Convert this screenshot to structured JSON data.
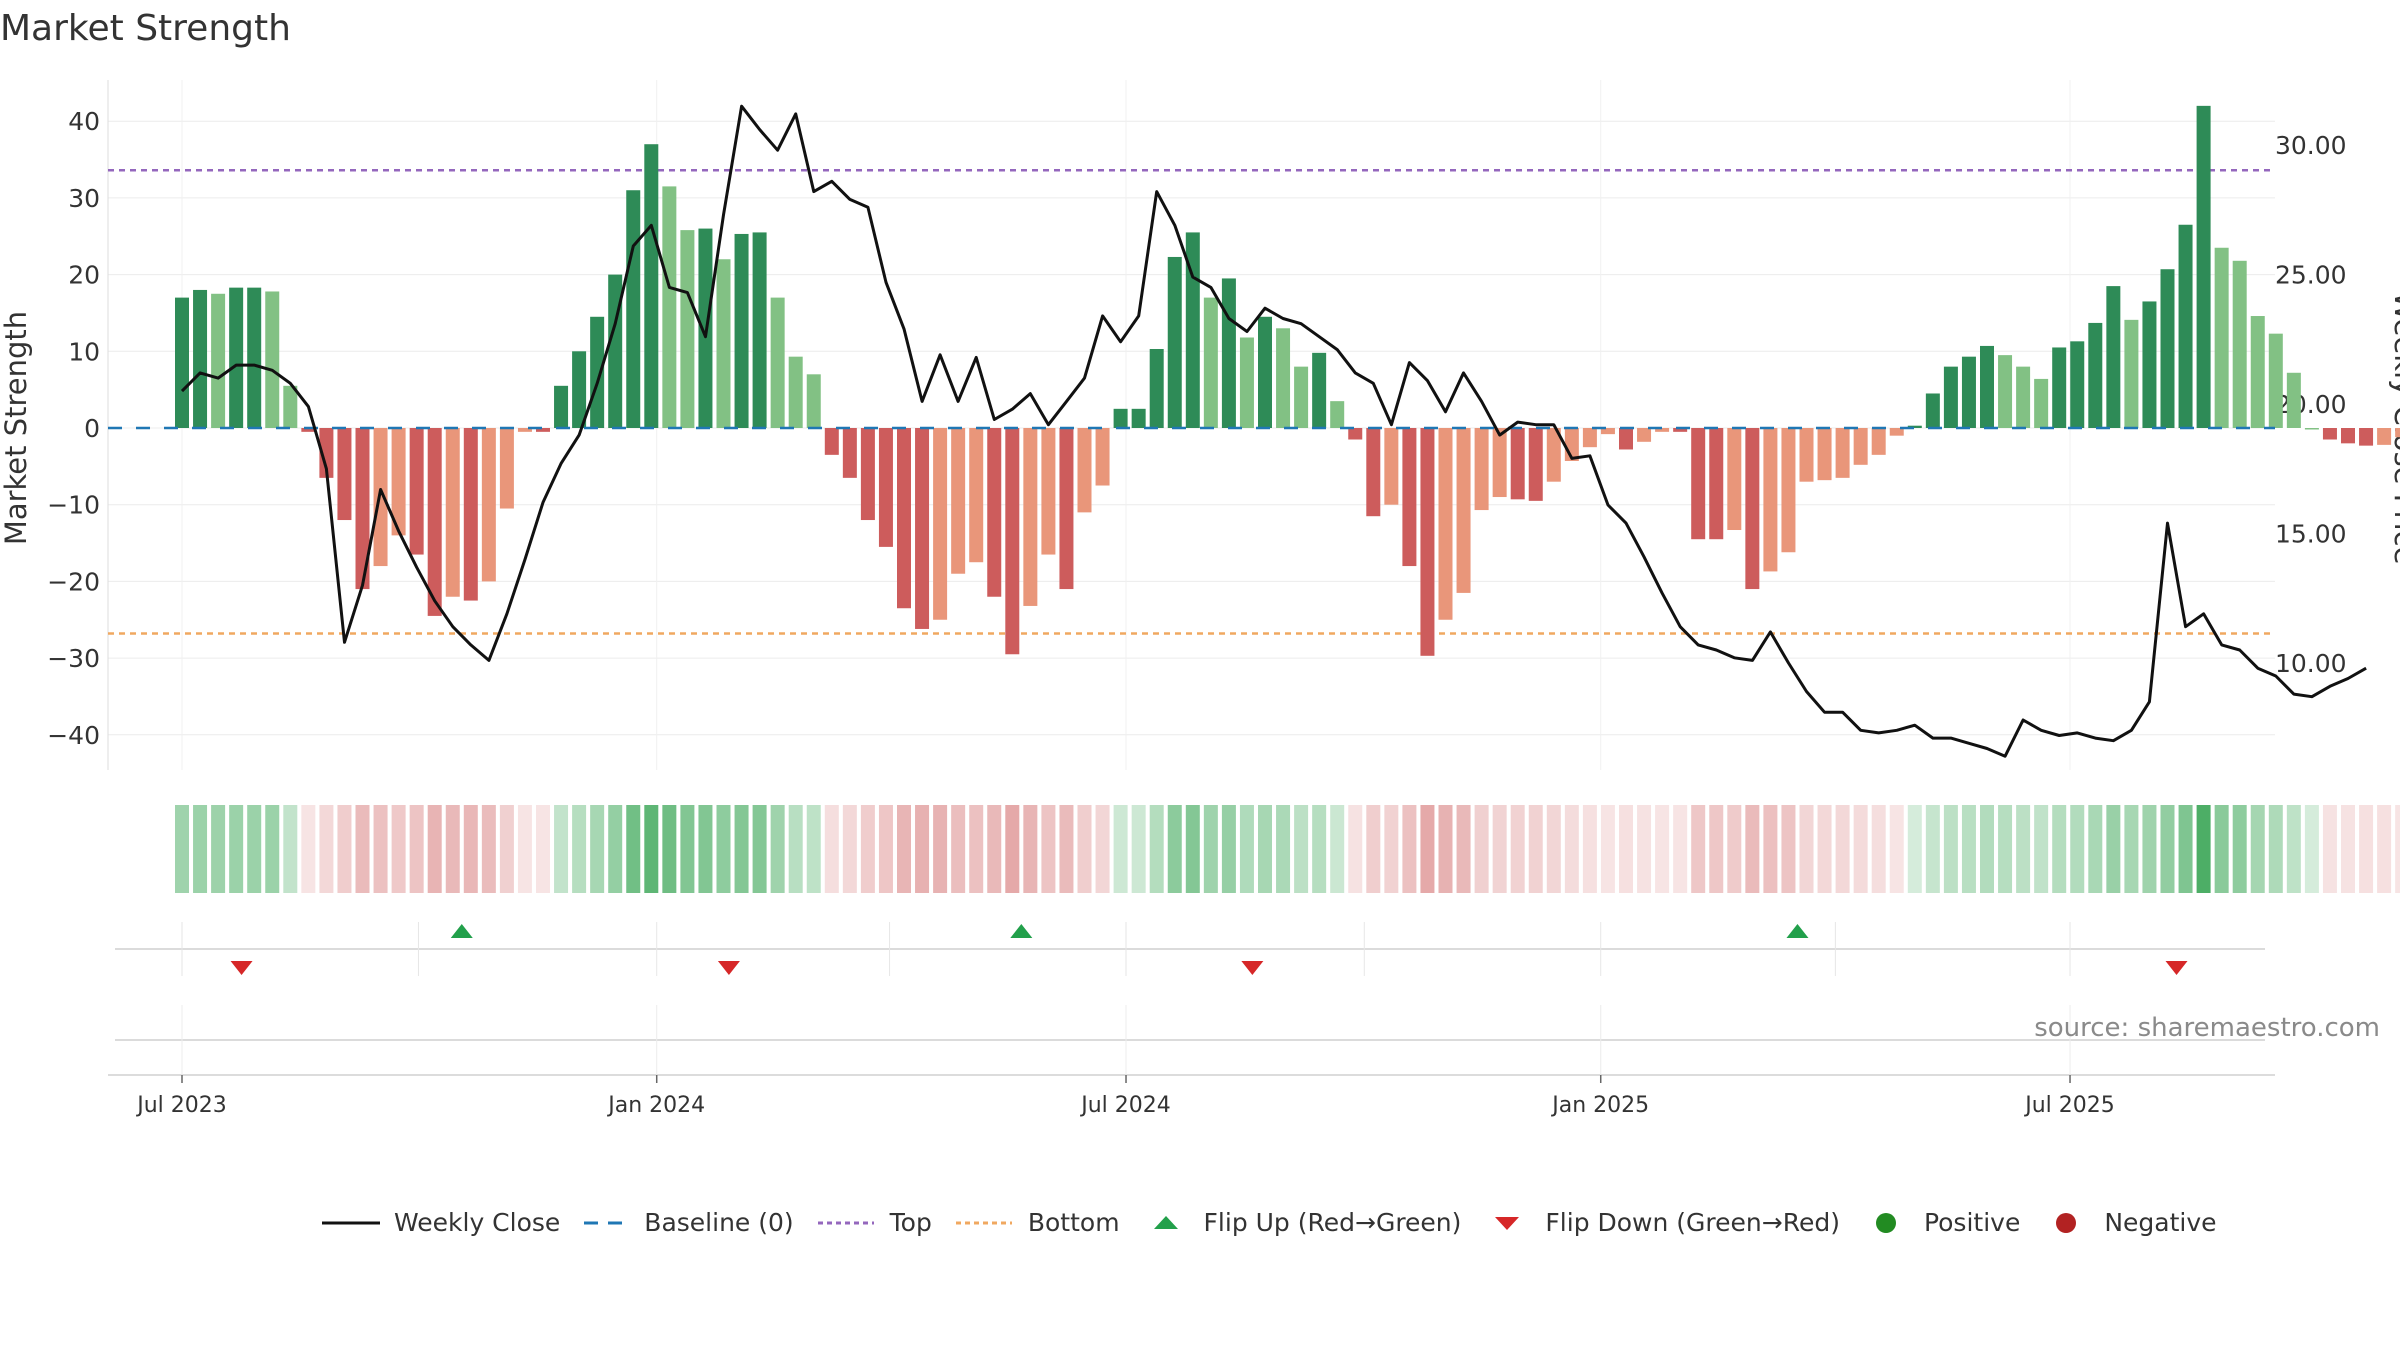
{
  "title": "Market Strength",
  "source": "source: sharemaestro.com",
  "colors": {
    "strong_pos": "#2e8b57",
    "weak_pos": "#82c184",
    "strong_neg": "#cd5c5c",
    "weak_neg": "#e9967a",
    "close_line": "#111111",
    "baseline": "#1f77b4",
    "top": "#9467bd",
    "bottom": "#f0a860",
    "flip_up": "#22a04b",
    "flip_down": "#d62728",
    "positive": "#228b22",
    "negative": "#b22222"
  },
  "legend": [
    {
      "label": "Weekly Close",
      "symbol": "line",
      "color": "#111111"
    },
    {
      "label": "Baseline (0)",
      "symbol": "dash",
      "color": "#1f77b4"
    },
    {
      "label": "Top",
      "symbol": "dot",
      "color": "#9467bd"
    },
    {
      "label": "Bottom",
      "symbol": "dot",
      "color": "#f0a860"
    },
    {
      "label": "Flip Up (Red→Green)",
      "symbol": "tri-up",
      "color": "#22a04b"
    },
    {
      "label": "Flip Down (Green→Red)",
      "symbol": "tri-down",
      "color": "#d62728"
    },
    {
      "label": "Positive",
      "symbol": "circle",
      "color": "#228b22"
    },
    {
      "label": "Negative",
      "symbol": "circle",
      "color": "#b22222"
    }
  ],
  "chart_data": {
    "type": "bar",
    "title": "Market Strength",
    "ylabel": "Market Strength",
    "y2label": "Weekly Close Price",
    "ylim": [
      -45,
      45
    ],
    "y2lim": [
      7.3,
      32.8
    ],
    "yticks": [
      40,
      30,
      20,
      10,
      0,
      -10,
      -20,
      -30,
      -40
    ],
    "y2ticks": [
      "30.00",
      "25.00",
      "20.00",
      "15.00",
      "10.00"
    ],
    "top_level": 33.6,
    "bottom_level": -26.8,
    "baseline": 0,
    "xlim_weeks": [
      -4,
      119
    ],
    "x_ticks": [
      {
        "label": "Jul 2023",
        "week": 0
      },
      {
        "label": "Jan 2024",
        "week": 26.3
      },
      {
        "label": "Jul 2024",
        "week": 52.3
      },
      {
        "label": "Jan 2025",
        "week": 78.6
      },
      {
        "label": "Jul 2025",
        "week": 104.6
      }
    ],
    "series": [
      {
        "name": "Market Strength",
        "values": [
          17,
          18,
          17.5,
          18.3,
          18.3,
          17.8,
          5.5,
          -0.5,
          -6.5,
          -12,
          -21,
          -18,
          -14,
          -16.5,
          -24.5,
          -22,
          -22.5,
          -20,
          -10.5,
          -0.5,
          -0.5,
          5.5,
          10,
          14.5,
          20,
          31,
          37,
          31.5,
          25.8,
          26,
          22,
          25.3,
          25.5,
          17,
          9.3,
          7,
          -3.5,
          -6.5,
          -12,
          -15.5,
          -23.5,
          -26.2,
          -25,
          -19,
          -17.5,
          -22,
          -29.5,
          -23.2,
          -16.5,
          -21,
          -11,
          -7.5,
          2.5,
          2.5,
          10.3,
          22.3,
          25.5,
          17,
          19.5,
          11.8,
          14.5,
          13,
          8,
          9.8,
          3.5,
          -1.5,
          -11.5,
          -10,
          -18,
          -29.7,
          -25,
          -21.5,
          -10.7,
          -9,
          -9.3,
          -9.5,
          -7,
          -4.3,
          -2.5,
          -0.8,
          -2.8,
          -1.8,
          -0.5,
          -0.5,
          -14.5,
          -14.5,
          -13.3,
          -21,
          -18.7,
          -16.2,
          -7,
          -6.8,
          -6.5,
          -4.8,
          -3.5,
          -1,
          0.3,
          4.5,
          8,
          9.3,
          10.7,
          9.5,
          8,
          6.4,
          10.5,
          11.3,
          13.7,
          18.5,
          14.1,
          16.5,
          20.7,
          26.5,
          42,
          23.5,
          21.8,
          14.6,
          12.3,
          7.2,
          0,
          -1.5,
          -2,
          -2.3,
          -2.2,
          -1.2
        ]
      },
      {
        "name": "Weekly Close",
        "values": [
          20.5,
          21.2,
          21,
          21.5,
          21.5,
          21.3,
          20.8,
          19.9,
          17.5,
          10.8,
          13,
          16.7,
          15.1,
          13.7,
          12.4,
          11.4,
          10.7,
          10.1,
          11.9,
          14,
          16.2,
          17.7,
          18.8,
          20.8,
          23.1,
          26.1,
          26.9,
          24.5,
          24.3,
          22.6,
          27.3,
          31.5,
          30.6,
          29.8,
          31.2,
          28.2,
          28.6,
          27.9,
          27.6,
          24.7,
          22.9,
          20.1,
          21.9,
          20.1,
          21.8,
          19.4,
          19.8,
          20.4,
          19.2,
          20.1,
          21,
          23.4,
          22.4,
          23.4,
          28.2,
          26.9,
          24.9,
          24.5,
          23.3,
          22.8,
          23.7,
          23.3,
          23.1,
          22.6,
          22.1,
          21.2,
          20.8,
          19.2,
          21.6,
          20.9,
          19.7,
          21.2,
          20.1,
          18.8,
          19.3,
          19.2,
          19.2,
          17.9,
          18,
          16.1,
          15.4,
          14.1,
          12.7,
          11.4,
          10.7,
          10.5,
          10.2,
          10.1,
          11.2,
          10,
          8.9,
          8.1,
          8.1,
          7.4,
          7.3,
          7.4,
          7.6,
          7.1,
          7.1,
          6.9,
          6.7,
          6.4,
          7.8,
          7.4,
          7.2,
          7.3,
          7.1,
          7,
          7.4,
          8.5,
          15.4,
          11.4,
          11.9,
          10.7,
          10.5,
          9.8,
          9.5,
          8.8,
          8.7,
          9.1,
          9.4,
          9.8
        ]
      }
    ],
    "flip_up_weeks": [
      15.5,
      46.5,
      89.5
    ],
    "flip_down_weeks": [
      3.3,
      30.3,
      59.3,
      110.5
    ]
  }
}
